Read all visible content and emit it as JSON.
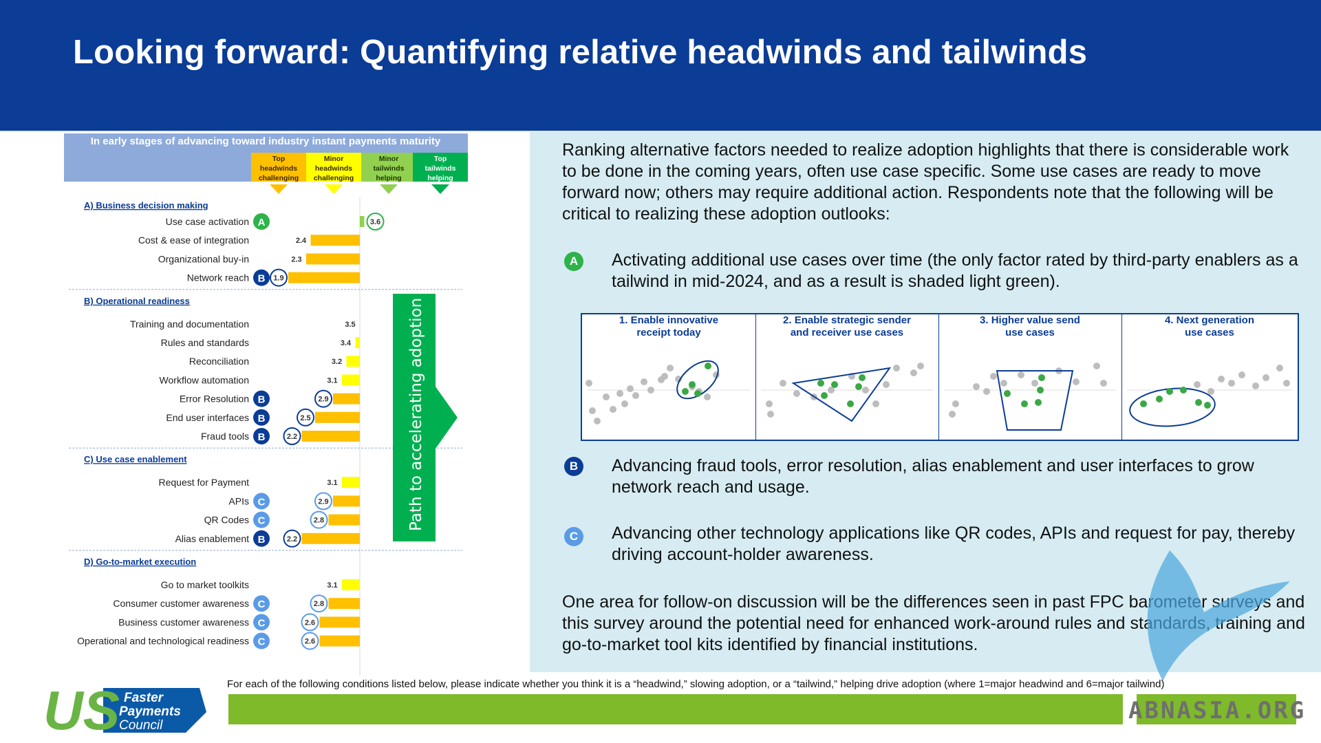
{
  "title": "Looking forward: Quantifying relative headwinds and tailwinds",
  "colors": {
    "header": "#0b3c96",
    "panel": "#d6ecf2",
    "yellow": "#ffff00",
    "orange": "#ffc000",
    "light_green": "#92d050",
    "green": "#00b050",
    "badge_a": "#2db34a",
    "badge_b": "#0b3c96",
    "badge_c": "#5b9be6"
  },
  "chart_data": {
    "type": "bar",
    "header": "In early stages of advancing toward industry instant payments maturity",
    "scale_labels": [
      "Top headwinds challenging",
      "Minor headwinds challenging",
      "Minor tailwinds helping",
      "Top tailwinds helping"
    ],
    "arrow_label": "Path to accelerating adoption",
    "xlim": [
      1,
      6
    ],
    "sections": [
      {
        "label": "A) Business decision making",
        "items": [
          {
            "label": "Use case activation",
            "value": 3.6,
            "badge": "A"
          },
          {
            "label": "Cost & ease of integration",
            "value": 2.4,
            "badge": ""
          },
          {
            "label": "Organizational buy-in",
            "value": 2.3,
            "badge": ""
          },
          {
            "label": "Network reach",
            "value": 1.9,
            "badge": "B"
          }
        ]
      },
      {
        "label": "B) Operational readiness",
        "items": [
          {
            "label": "Training and documentation",
            "value": 3.5,
            "badge": ""
          },
          {
            "label": "Rules and standards",
            "value": 3.4,
            "badge": ""
          },
          {
            "label": "Reconciliation",
            "value": 3.2,
            "badge": ""
          },
          {
            "label": "Workflow automation",
            "value": 3.1,
            "badge": ""
          },
          {
            "label": "Error Resolution",
            "value": 2.9,
            "badge": "B"
          },
          {
            "label": "End user interfaces",
            "value": 2.5,
            "badge": "B"
          },
          {
            "label": "Fraud tools",
            "value": 2.2,
            "badge": "B"
          }
        ]
      },
      {
        "label": "C) Use case enablement",
        "items": [
          {
            "label": "Request for Payment",
            "value": 3.1,
            "badge": ""
          },
          {
            "label": "APIs",
            "value": 2.9,
            "badge": "C"
          },
          {
            "label": "QR Codes",
            "value": 2.8,
            "badge": "C"
          },
          {
            "label": "Alias enablement",
            "value": 2.2,
            "badge": "B"
          }
        ]
      },
      {
        "label": "D) Go-to-market execution",
        "items": [
          {
            "label": "Go to market toolkits",
            "value": 3.1,
            "badge": ""
          },
          {
            "label": "Consumer customer awareness",
            "value": 2.8,
            "badge": "C"
          },
          {
            "label": "Business customer awareness",
            "value": 2.6,
            "badge": "C"
          },
          {
            "label": "Operational and technological readiness",
            "value": 2.6,
            "badge": "C"
          }
        ]
      }
    ]
  },
  "right": {
    "intro": "Ranking alternative factors needed to realize adoption highlights that there is considerable work to be done in the coming years, often use case specific. Some use cases are ready to move forward now; others may require additional action. Respondents note that the following will be critical to realizing these adoption outlooks:",
    "point_a": "Activating additional use cases over time (the only factor rated by third-party enablers as a tailwind in mid-2024, and as a result is shaded light green).",
    "point_b": "Advancing fraud tools, error resolution, alias enablement and user interfaces to grow network reach and usage.",
    "point_c": "Advancing other technology applications like QR codes, APIs and request for pay, thereby driving account-holder awareness.",
    "closing": "One area for follow-on discussion will be the differences seen in past FPC barometer surveys and this survey around the potential need for enhanced work-around rules and standards, training and go-to-market tool kits identified by financial institutions.",
    "badges": {
      "a": "A",
      "b": "B",
      "c": "C"
    }
  },
  "quadrants": [
    {
      "title": "1. Enable innovative\nreceipt today",
      "shape": "ellipse"
    },
    {
      "title": "2. Enable strategic sender\nand receiver use cases",
      "shape": "triangle"
    },
    {
      "title": "3. Higher value send\nuse cases",
      "shape": "trapezoid"
    },
    {
      "title": "4. Next generation\nuse cases",
      "shape": "ellipse"
    }
  ],
  "footer": {
    "note": "For each of the following conditions listed below, please indicate whether you think it is a “headwind,” slowing adoption, or a “tailwind,” helping drive adoption (where 1=major headwind and 6=major tailwind)",
    "logo_us": "US",
    "logo_lines": [
      "Faster",
      "Payments",
      "Council"
    ],
    "watermark": "ABNASIA.ORG"
  }
}
